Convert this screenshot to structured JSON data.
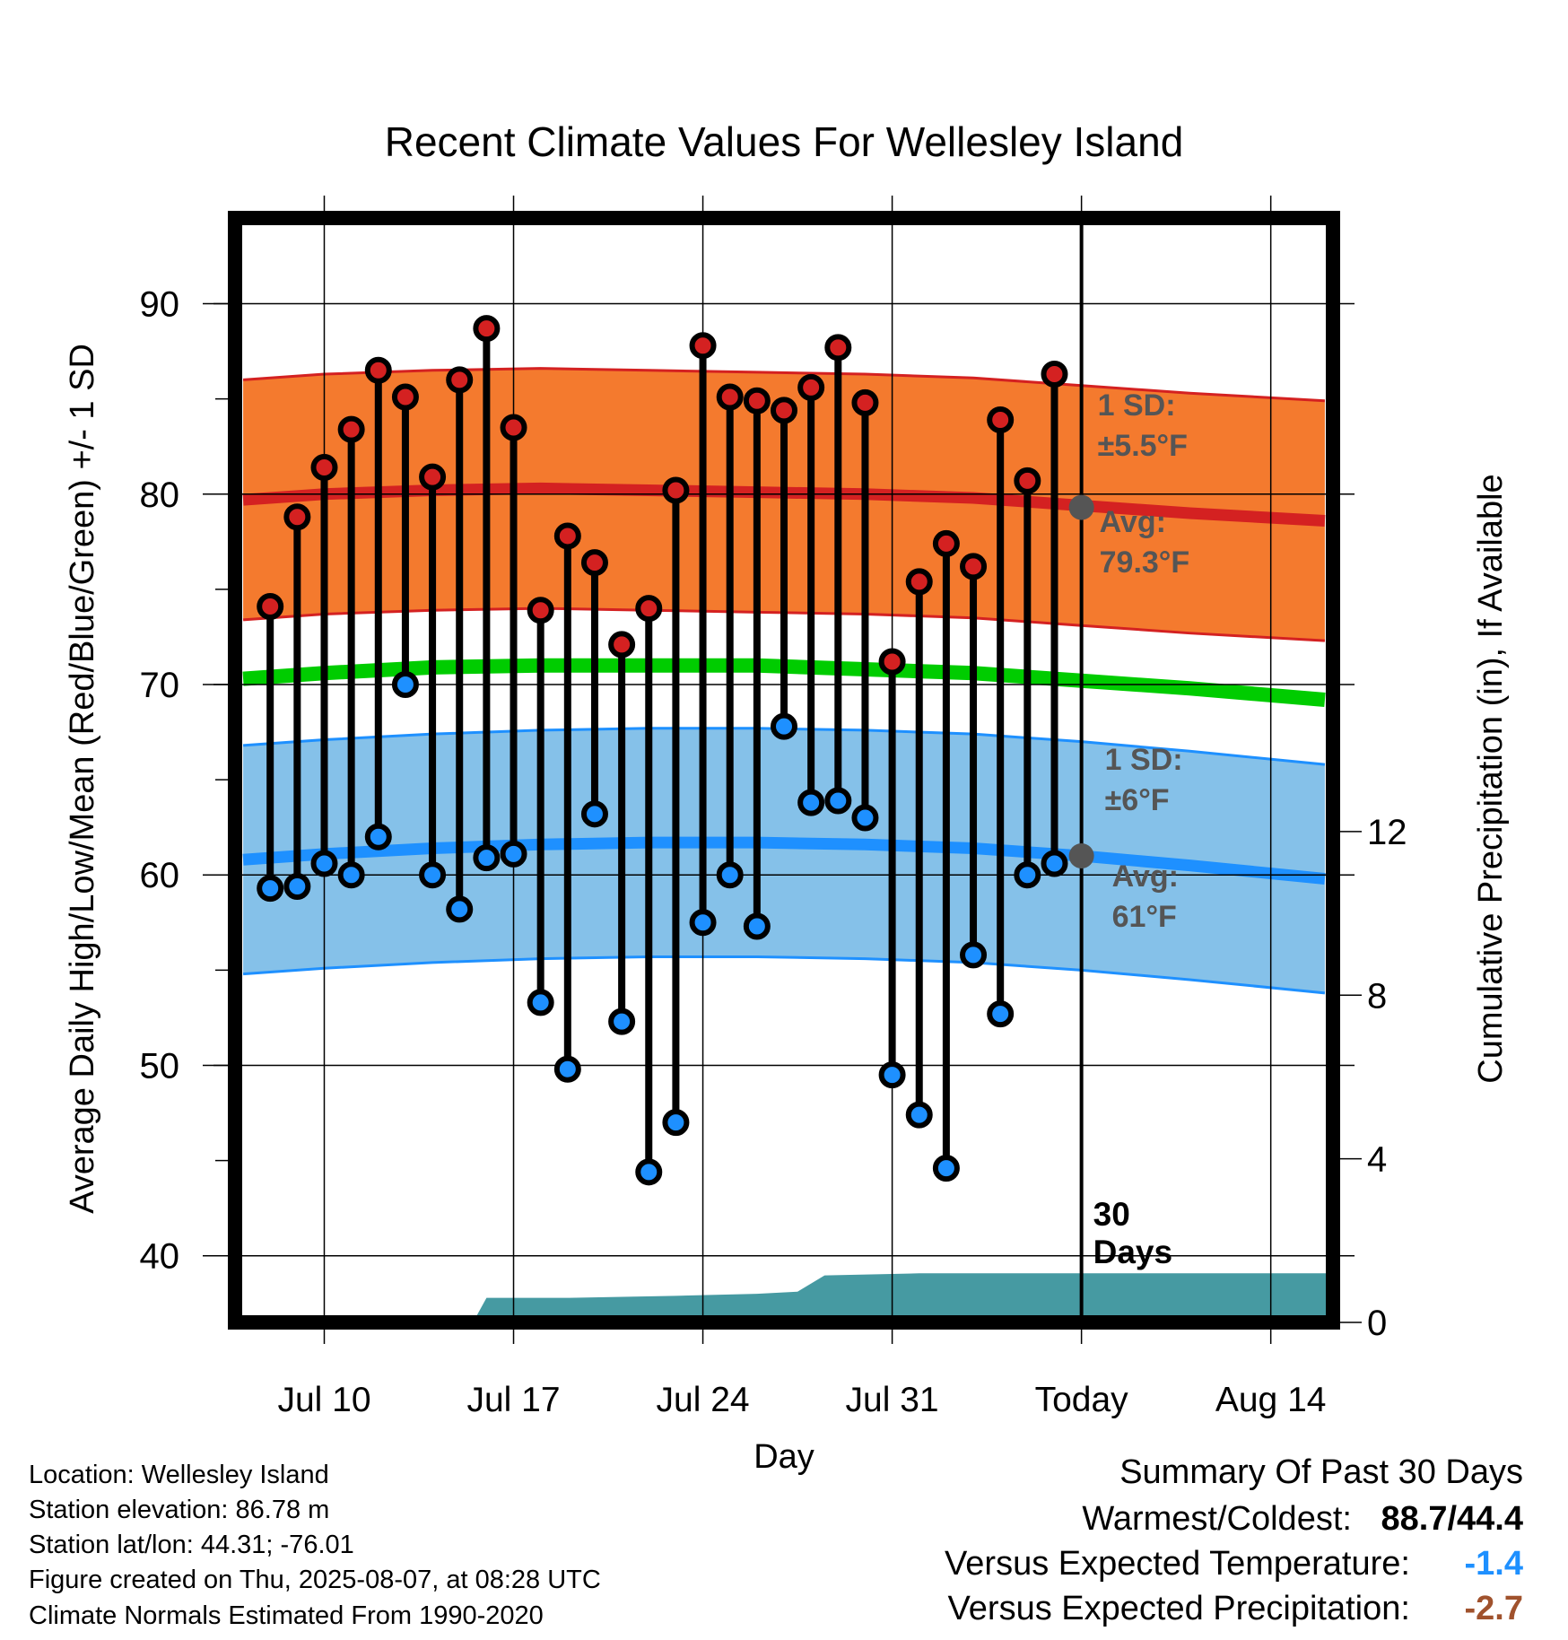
{
  "chart_data": {
    "type": "line",
    "title": "Recent Climate Values For Wellesley Island",
    "xlabel": "Day",
    "ylabel": "Average Daily High/Low/Mean (Red/Blue/Green) +/- 1 SD",
    "y2label": "Cumulative Precipitation (in), If Available",
    "ylim": [
      36.5,
      94.5
    ],
    "y2lim": [
      0,
      27.0
    ],
    "yticks": [
      40,
      50,
      60,
      70,
      80,
      90
    ],
    "y2ticks": [
      0,
      4,
      8,
      12
    ],
    "ytick_labels": [
      "40",
      "50",
      "60",
      "70",
      "80",
      "90"
    ],
    "y2tick_labels": [
      "0",
      "4",
      "8",
      "12"
    ],
    "xlim": [
      -3.3,
      37.3
    ],
    "xticks": [
      {
        "day": 0,
        "label": "Jul 10"
      },
      {
        "day": 7,
        "label": "Jul 17"
      },
      {
        "day": 14,
        "label": "Jul 24"
      },
      {
        "day": 21,
        "label": "Jul 31"
      },
      {
        "day": 28,
        "label": "Today"
      },
      {
        "day": 35,
        "label": "Aug 14"
      }
    ],
    "grid": true,
    "today_day": 28,
    "window_label": "30 Days",
    "days": [
      -2,
      -1,
      0,
      1,
      2,
      3,
      4,
      5,
      6,
      7,
      8,
      9,
      10,
      11,
      12,
      13,
      14,
      15,
      16,
      17,
      18,
      19,
      20,
      21,
      22,
      23,
      24,
      25,
      26,
      27
    ],
    "highs": [
      74.1,
      78.8,
      81.4,
      83.4,
      86.5,
      85.1,
      80.9,
      86.0,
      88.7,
      83.5,
      73.9,
      77.8,
      76.4,
      72.1,
      74.0,
      80.2,
      87.8,
      85.1,
      84.9,
      84.4,
      85.6,
      87.7,
      84.8,
      71.2,
      75.4,
      77.4,
      76.2,
      83.9,
      80.7,
      86.3
    ],
    "lows": [
      59.3,
      59.4,
      60.6,
      60.0,
      62.0,
      70.0,
      60.0,
      58.2,
      60.9,
      61.1,
      53.3,
      49.8,
      63.2,
      52.3,
      44.4,
      47.0,
      57.5,
      60.0,
      57.3,
      67.8,
      63.8,
      63.9,
      63.0,
      49.5,
      47.4,
      44.6,
      55.8,
      52.7,
      60.0,
      60.6
    ],
    "normals": {
      "days": [
        -3,
        0,
        4,
        8,
        12,
        16,
        20,
        24,
        28,
        32,
        37
      ],
      "high_mean": [
        79.7,
        80.0,
        80.2,
        80.3,
        80.2,
        80.1,
        80.0,
        79.8,
        79.4,
        79.0,
        78.6
      ],
      "high_sd": 6.3,
      "low_mean": [
        60.8,
        61.1,
        61.4,
        61.6,
        61.7,
        61.7,
        61.6,
        61.4,
        61.0,
        60.5,
        59.8
      ],
      "low_sd": 6.0,
      "mean": [
        70.3,
        70.6,
        70.9,
        71.0,
        71.0,
        71.0,
        70.8,
        70.6,
        70.2,
        69.8,
        69.2
      ]
    },
    "precip": {
      "days": [
        -3,
        5.5,
        6.0,
        9,
        13,
        16,
        17.5,
        18.5,
        22,
        25,
        28,
        37.3
      ],
      "cumulative": [
        0,
        0,
        0.6,
        0.6,
        0.65,
        0.7,
        0.75,
        1.15,
        1.2,
        1.2,
        1.2,
        1.2
      ]
    },
    "annotations": {
      "high_sd_label": "1 SD:",
      "high_sd_value": "±5.5°F",
      "high_avg_label": "Avg:",
      "high_avg_value": "79.3°F",
      "high_avg": 79.3,
      "low_sd_label": "1 SD:",
      "low_sd_value": "±6°F",
      "low_avg_label": "Avg:",
      "low_avg_value": "61°F",
      "low_avg": 61.0
    },
    "colors": {
      "high_band": "#f47a2e",
      "high_line": "#d42121",
      "low_band": "#85c1e9",
      "low_line": "#1e90ff",
      "mean_line": "#00cc00",
      "precip": "#469aa2",
      "high_dot": "#d42121",
      "low_dot": "#1e90ff",
      "annotation": "#555555"
    }
  },
  "meta": {
    "location": "Location: Wellesley Island",
    "elevation": "Station elevation: 86.78 m",
    "latlon": "Station lat/lon: 44.31; -76.01",
    "created": "Figure created on Thu, 2025-08-07, at 08:28 UTC",
    "normals": "Climate Normals Estimated From 1990-2020"
  },
  "summary": {
    "title": "Summary Of Past 30 Days",
    "warm_cold_label": "Warmest/Coldest:",
    "warm_cold_value": "88.7/44.4",
    "temp_label": "Versus Expected Temperature:",
    "temp_value": "-1.4",
    "temp_color": "#1e90ff",
    "precip_label": "Versus Expected Precipitation:",
    "precip_value": "-2.7",
    "precip_color": "#a0522d"
  }
}
